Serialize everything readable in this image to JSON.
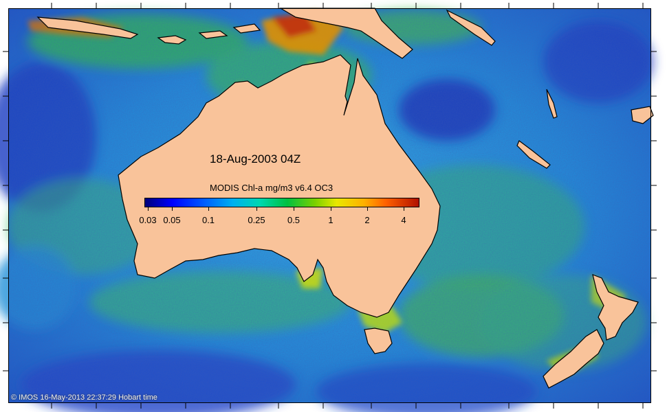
{
  "map": {
    "title": "18-Aug-2003 04Z",
    "colorbar": {
      "label": "MODIS Chl-a mg/m3 v6.4 OC3",
      "ticks": [
        "0.03",
        "0.05",
        "0.1",
        "0.25",
        "0.5",
        "1",
        "2",
        "4"
      ]
    },
    "credit": "© IMOS 16-May-2013 22:37:29 Hobart time",
    "colors": {
      "land": "#f9c39a",
      "ocean_low": "#1e50d0",
      "ocean_mid": "#24a8e0",
      "ocean_high": "#3cc050",
      "bloom": "#e8e000",
      "bloom_high": "#c03010"
    },
    "regions": [
      "australia",
      "tasmania",
      "new-zealand-north-island",
      "new-zealand-south-island",
      "new-guinea",
      "indonesia"
    ]
  }
}
